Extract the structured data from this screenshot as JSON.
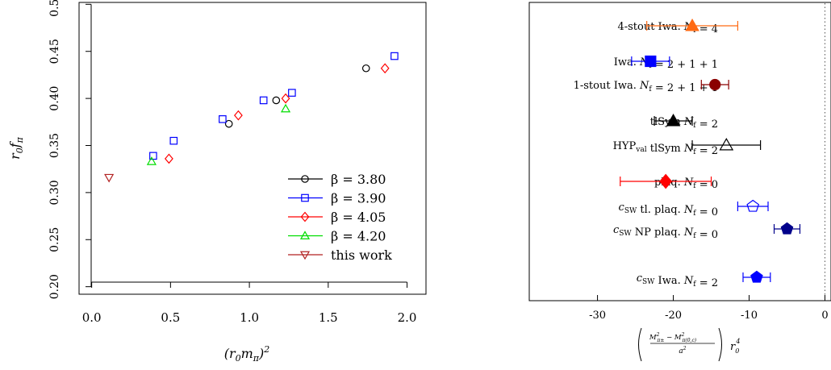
{
  "chart_data": [
    {
      "type": "scatter",
      "xlabel": "(r₀m_π)²",
      "ylabel": "r₀f_π",
      "xlim": [
        -0.08,
        2.12
      ],
      "ylim": [
        0.192,
        0.502
      ],
      "xticks": [
        "0.0",
        "0.5",
        "1.0",
        "1.5",
        "2.0"
      ],
      "yticks": [
        "0.20",
        "0.25",
        "0.30",
        "0.35",
        "0.40",
        "0.45",
        "0.50"
      ],
      "legend_position": "bottom-right",
      "series": [
        {
          "name": "β = 3.80",
          "marker": "circle",
          "color": "#000000",
          "points": [
            [
              0.87,
              0.373
            ],
            [
              1.17,
              0.398
            ],
            [
              1.74,
              0.432
            ]
          ]
        },
        {
          "name": "β = 3.90",
          "marker": "square",
          "color": "#0000ff",
          "points": [
            [
              0.39,
              0.339
            ],
            [
              0.52,
              0.355
            ],
            [
              0.83,
              0.378
            ],
            [
              1.09,
              0.398
            ],
            [
              1.27,
              0.406
            ],
            [
              1.92,
              0.445
            ]
          ]
        },
        {
          "name": "β = 4.05",
          "marker": "diamond",
          "color": "#ff0000",
          "points": [
            [
              0.49,
              0.336
            ],
            [
              0.93,
              0.382
            ],
            [
              1.23,
              0.4
            ],
            [
              1.86,
              0.432
            ]
          ]
        },
        {
          "name": "β = 4.20",
          "marker": "triangle-up",
          "color": "#00dd00",
          "points": [
            [
              0.38,
              0.333
            ],
            [
              1.23,
              0.389
            ]
          ]
        },
        {
          "name": "this work",
          "marker": "triangle-down",
          "color": "#b22222",
          "points": [
            [
              0.11,
              0.316
            ]
          ]
        }
      ]
    },
    {
      "type": "scatter",
      "xlabel": "( (M²π± − M²π(0,c)) / a² ) r₀⁴",
      "xlim": [
        -39,
        0.8
      ],
      "xticks": [
        "-30",
        "-20",
        "-10",
        "0"
      ],
      "reference_line_x": 0,
      "rows": [
        {
          "label": "4-stout  Iwa.  N_f = 4",
          "value": -17.5,
          "error": 6.0,
          "marker": "triangle-up",
          "filled": true,
          "color": "#ff6a13"
        },
        {
          "label": "Iwa.  N_f = 2 + 1 + 1",
          "value": -23,
          "error": 2.5,
          "marker": "square",
          "filled": true,
          "color": "#0000ff"
        },
        {
          "label": "1-stout  Iwa.  N_f = 2 + 1 + 1",
          "value": -14.5,
          "error": 1.8,
          "marker": "circle",
          "filled": true,
          "color": "#8b0000"
        },
        {
          "label": "tlSym  N_f = 2",
          "value": -20,
          "error": 2.5,
          "marker": "triangle-up",
          "filled": true,
          "color": "#000000"
        },
        {
          "label": "HYP_val  tlSym  N_f = 2",
          "value": -13,
          "error": 4.5,
          "marker": "triangle-up",
          "filled": false,
          "color": "#000000"
        },
        {
          "label": "plaq.  N_f = 0",
          "value": -21,
          "error": 6.0,
          "marker": "diamond",
          "filled": true,
          "color": "#ff0000"
        },
        {
          "label": "c_SW  tl.  plaq.  N_f = 0",
          "value": -9.5,
          "error": 2.0,
          "marker": "pentagon",
          "filled": false,
          "color": "#0000ff"
        },
        {
          "label": "c_SW  NP  plaq.  N_f = 0",
          "value": -5,
          "error": 1.7,
          "marker": "pentagon",
          "filled": true,
          "color": "#00008b"
        },
        {
          "label": "c_SW  Iwa.  N_f = 2",
          "value": -9,
          "error": 1.8,
          "marker": "pentagon",
          "filled": true,
          "color": "#0000ff"
        }
      ]
    }
  ]
}
